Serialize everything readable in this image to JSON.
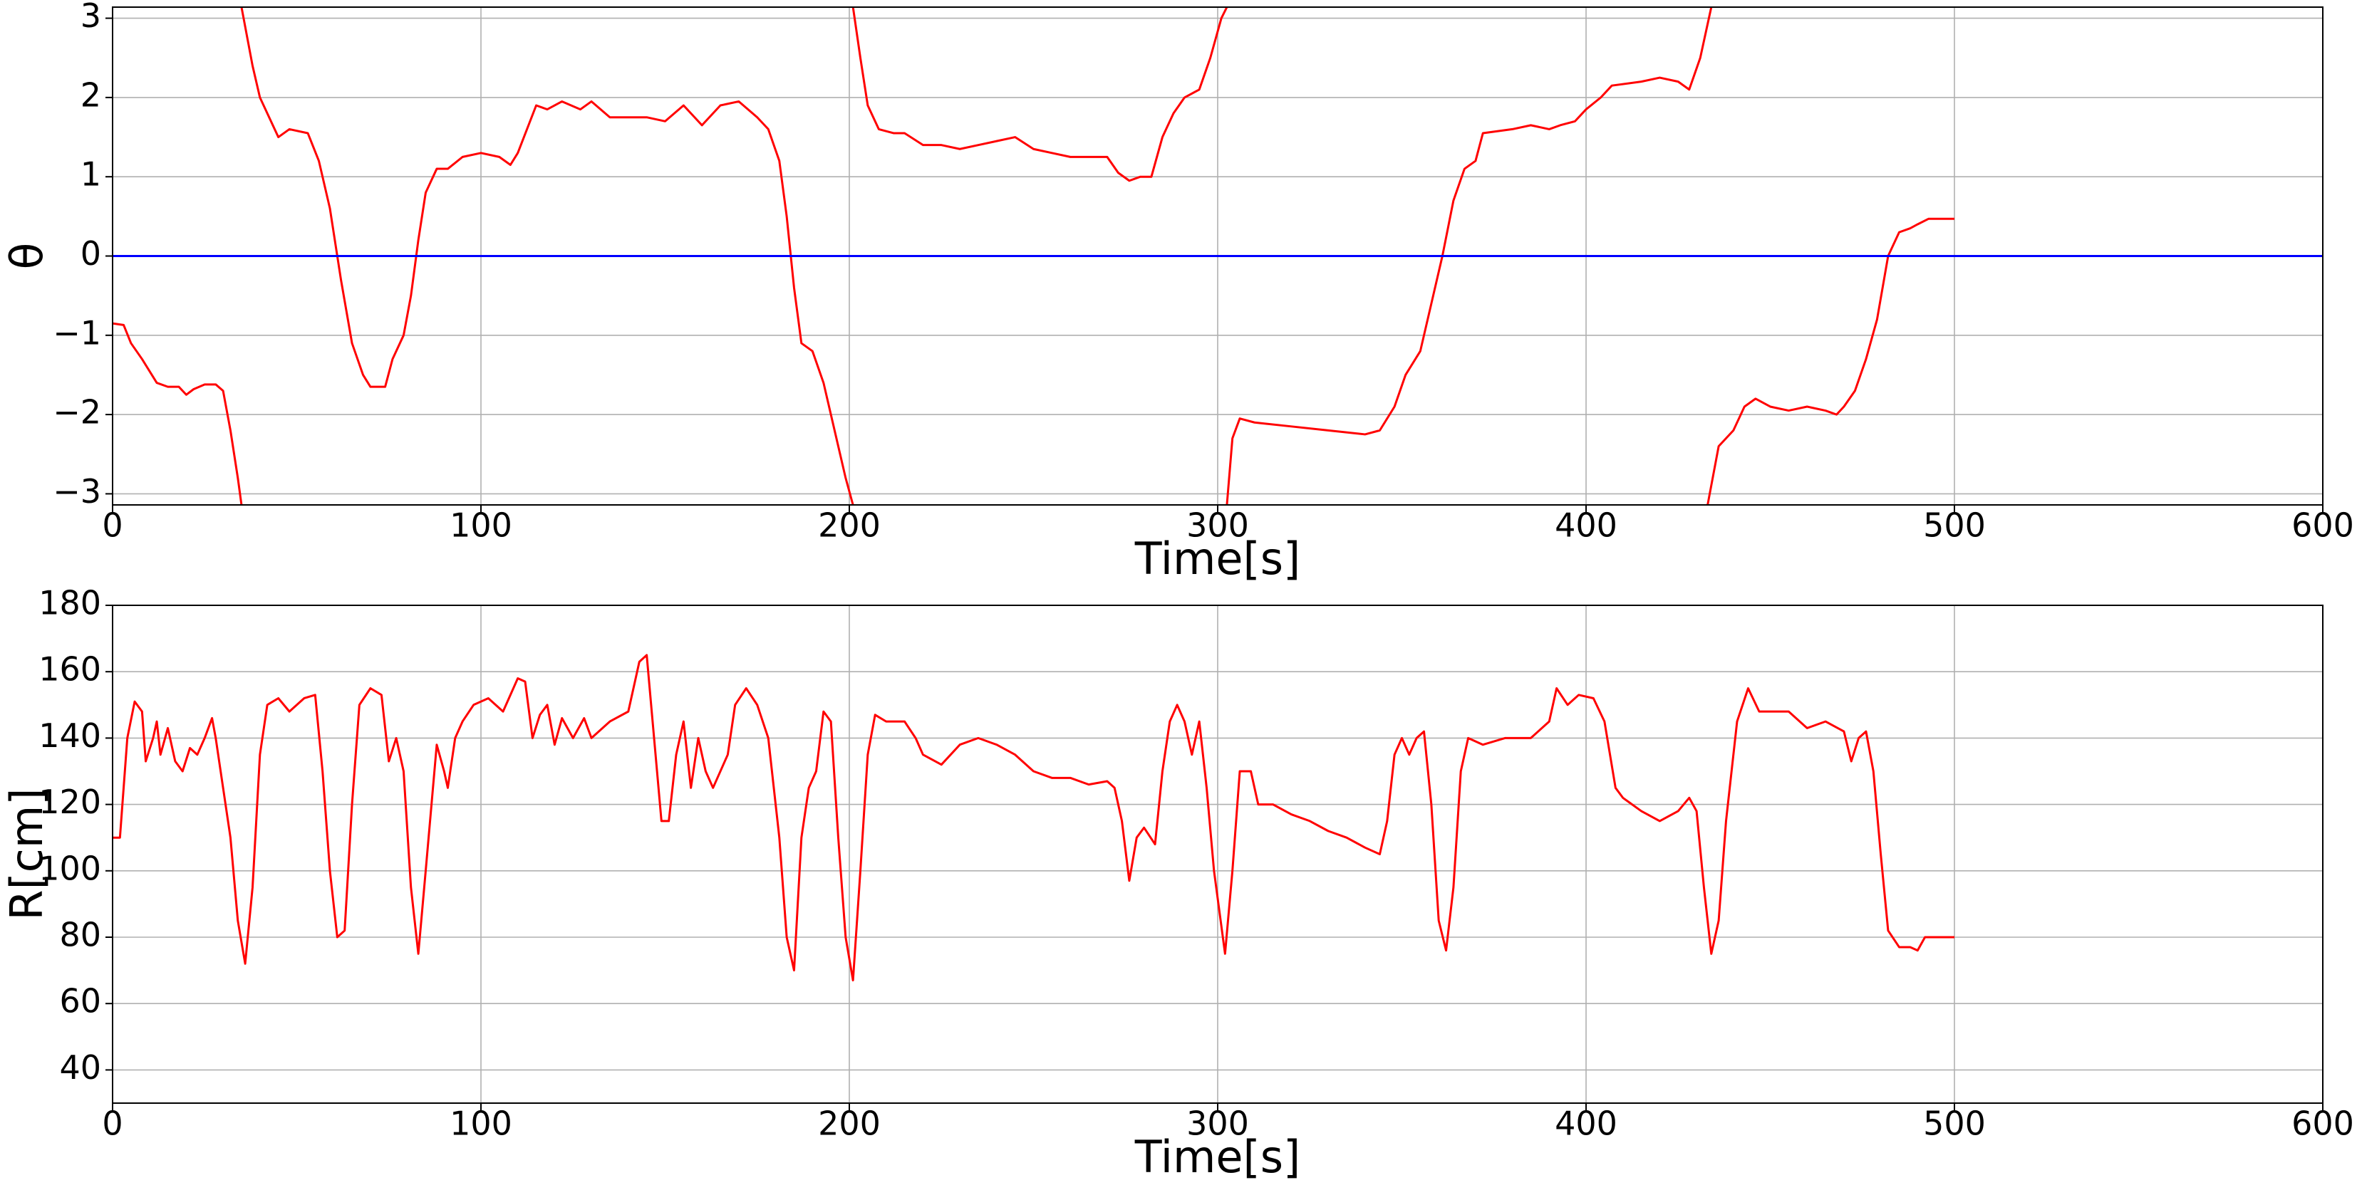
{
  "chart_data": [
    {
      "type": "line",
      "xlabel": "Time[s]",
      "ylabel": "θ",
      "grid": true,
      "xlim": [
        0,
        600
      ],
      "xticks": [
        0,
        100,
        200,
        300,
        400,
        500,
        600
      ],
      "ylim": [
        -3.14,
        3.14
      ],
      "yticks": [
        {
          "value": -3,
          "label": "−3"
        },
        {
          "value": -2,
          "label": "−2"
        },
        {
          "value": -1,
          "label": "−1"
        },
        0,
        1,
        2,
        3
      ],
      "series": [
        {
          "color": "#ff0000",
          "x": [
            0,
            3,
            5,
            8,
            12,
            15,
            18,
            20,
            22,
            25,
            28,
            30,
            32,
            34,
            35,
            35,
            35,
            38,
            40,
            43,
            45,
            48,
            53,
            56,
            59,
            62,
            65,
            68,
            70,
            74,
            76,
            79,
            81,
            83,
            85,
            88,
            91,
            95,
            100,
            105,
            108,
            110,
            115,
            118,
            122,
            127,
            130,
            135,
            140,
            145,
            150,
            155,
            160,
            165,
            170,
            175,
            178,
            181,
            183,
            185,
            187,
            190,
            193,
            196,
            199,
            201,
            201,
            201,
            203,
            205,
            208,
            212,
            215,
            220,
            225,
            230,
            235,
            240,
            245,
            250,
            255,
            260,
            265,
            270,
            273,
            276,
            279,
            282,
            285,
            288,
            291,
            295,
            298,
            301,
            302.5,
            302.5,
            302.5,
            304,
            306,
            310,
            320,
            330,
            340,
            344,
            348,
            351,
            355,
            358,
            361,
            364,
            367,
            370,
            372,
            380,
            385,
            390,
            393,
            397,
            400,
            404,
            407,
            415,
            420,
            425,
            428,
            431,
            434,
            434,
            433,
            436,
            440,
            443,
            446,
            450,
            455,
            460,
            465,
            468,
            470,
            473,
            476,
            479,
            482,
            485,
            488,
            490,
            493,
            500
          ],
          "values": [
            -0.85,
            -0.87,
            -1.1,
            -1.3,
            -1.6,
            -1.65,
            -1.65,
            -1.75,
            -1.68,
            -1.62,
            -1.62,
            -1.7,
            -2.2,
            -2.8,
            -3.14,
            null,
            3.14,
            2.4,
            2.0,
            1.7,
            1.5,
            1.6,
            1.55,
            1.2,
            0.6,
            -0.3,
            -1.1,
            -1.5,
            -1.65,
            -1.65,
            -1.3,
            -1.0,
            -0.5,
            0.2,
            0.8,
            1.1,
            1.1,
            1.25,
            1.3,
            1.25,
            1.15,
            1.3,
            1.9,
            1.85,
            1.95,
            1.85,
            1.95,
            1.75,
            1.75,
            1.75,
            1.7,
            1.9,
            1.65,
            1.9,
            1.95,
            1.75,
            1.6,
            1.2,
            0.5,
            -0.4,
            -1.1,
            -1.2,
            -1.6,
            -2.2,
            -2.8,
            -3.14,
            null,
            3.14,
            2.5,
            1.9,
            1.6,
            1.55,
            1.55,
            1.4,
            1.4,
            1.35,
            1.4,
            1.45,
            1.5,
            1.35,
            1.3,
            1.25,
            1.25,
            1.25,
            1.05,
            0.95,
            1.0,
            1.0,
            1.5,
            1.8,
            2.0,
            2.1,
            2.5,
            3.0,
            3.14,
            null,
            -3.14,
            -2.3,
            -2.05,
            -2.1,
            -2.15,
            -2.2,
            -2.25,
            -2.2,
            -1.9,
            -1.5,
            -1.2,
            -0.6,
            0.0,
            0.7,
            1.1,
            1.2,
            1.55,
            1.6,
            1.65,
            1.6,
            1.65,
            1.7,
            1.85,
            2.0,
            2.15,
            2.2,
            2.25,
            2.2,
            2.1,
            2.5,
            3.14,
            null,
            -3.14,
            -2.4,
            -2.2,
            -1.9,
            -1.8,
            -1.9,
            -1.95,
            -1.9,
            -1.95,
            -2.0,
            -1.9,
            -1.7,
            -1.3,
            -0.8,
            0.0,
            0.3,
            0.35,
            0.4,
            0.47,
            0.47
          ]
        },
        {
          "color": "#0000ff",
          "x": [
            0,
            600
          ],
          "values": [
            0,
            0
          ]
        }
      ]
    },
    {
      "type": "line",
      "xlabel": "Time[s]",
      "ylabel": "R[cm]",
      "grid": true,
      "xlim": [
        0,
        600
      ],
      "xticks": [
        0,
        100,
        200,
        300,
        400,
        500,
        600
      ],
      "ylim": [
        30,
        180
      ],
      "yticks": [
        40,
        60,
        80,
        100,
        120,
        140,
        160,
        180
      ],
      "series": [
        {
          "color": "#ff0000",
          "x": [
            0,
            2,
            4,
            6,
            8,
            9,
            11,
            12,
            13,
            15,
            17,
            19,
            21,
            23,
            25,
            27,
            28,
            30,
            32,
            34,
            36,
            38,
            40,
            42,
            45,
            48,
            52,
            55,
            57,
            59,
            61,
            63,
            65,
            67,
            70,
            73,
            75,
            77,
            79,
            81,
            83,
            85,
            88,
            90,
            91,
            93,
            95,
            98,
            102,
            106,
            110,
            112,
            114,
            116,
            118,
            120,
            122,
            125,
            128,
            130,
            135,
            140,
            143,
            145,
            147,
            149,
            151,
            153,
            155,
            157,
            159,
            161,
            163,
            167,
            169,
            172,
            175,
            178,
            181,
            183,
            185,
            187,
            189,
            191,
            193,
            195,
            197,
            199,
            201,
            203,
            205,
            207,
            210,
            215,
            218,
            220,
            225,
            230,
            235,
            240,
            245,
            250,
            255,
            260,
            265,
            270,
            272,
            274,
            276,
            278,
            280,
            283,
            285,
            287,
            289,
            291,
            293,
            295,
            297,
            299,
            302,
            304,
            306,
            309,
            311,
            315,
            320,
            325,
            330,
            335,
            340,
            344,
            346,
            348,
            350,
            352,
            354,
            356,
            358,
            360,
            362,
            364,
            366,
            368,
            372,
            378,
            385,
            390,
            392,
            395,
            398,
            402,
            405,
            408,
            410,
            415,
            420,
            425,
            428,
            430,
            432,
            434,
            436,
            438,
            441,
            444,
            447,
            450,
            455,
            460,
            465,
            470,
            472,
            474,
            476,
            478,
            480,
            482,
            485,
            488,
            490,
            492,
            494,
            500
          ],
          "values": [
            110,
            110,
            140,
            151,
            148,
            133,
            140,
            145,
            135,
            143,
            133,
            130,
            137,
            135,
            140,
            146,
            140,
            125,
            110,
            85,
            72,
            95,
            135,
            150,
            152,
            148,
            152,
            153,
            130,
            100,
            80,
            82,
            120,
            150,
            155,
            153,
            133,
            140,
            130,
            95,
            75,
            100,
            138,
            130,
            125,
            140,
            145,
            150,
            152,
            148,
            158,
            157,
            140,
            147,
            150,
            138,
            146,
            140,
            146,
            140,
            145,
            148,
            163,
            165,
            140,
            115,
            115,
            135,
            145,
            125,
            140,
            130,
            125,
            135,
            150,
            155,
            150,
            140,
            110,
            80,
            70,
            110,
            125,
            130,
            148,
            145,
            110,
            80,
            67,
            100,
            135,
            147,
            145,
            145,
            140,
            135,
            132,
            138,
            140,
            138,
            135,
            130,
            128,
            128,
            126,
            127,
            125,
            115,
            97,
            110,
            113,
            108,
            130,
            145,
            150,
            145,
            135,
            145,
            125,
            100,
            75,
            100,
            130,
            130,
            120,
            120,
            117,
            115,
            112,
            110,
            107,
            105,
            115,
            135,
            140,
            135,
            140,
            142,
            120,
            85,
            76,
            95,
            130,
            140,
            138,
            140,
            140,
            145,
            155,
            150,
            153,
            152,
            145,
            125,
            122,
            118,
            115,
            118,
            122,
            118,
            95,
            75,
            85,
            115,
            145,
            155,
            148,
            148,
            148,
            143,
            145,
            142,
            133,
            140,
            142,
            130,
            105,
            82,
            77,
            77,
            76,
            80,
            80,
            80
          ]
        }
      ]
    }
  ]
}
